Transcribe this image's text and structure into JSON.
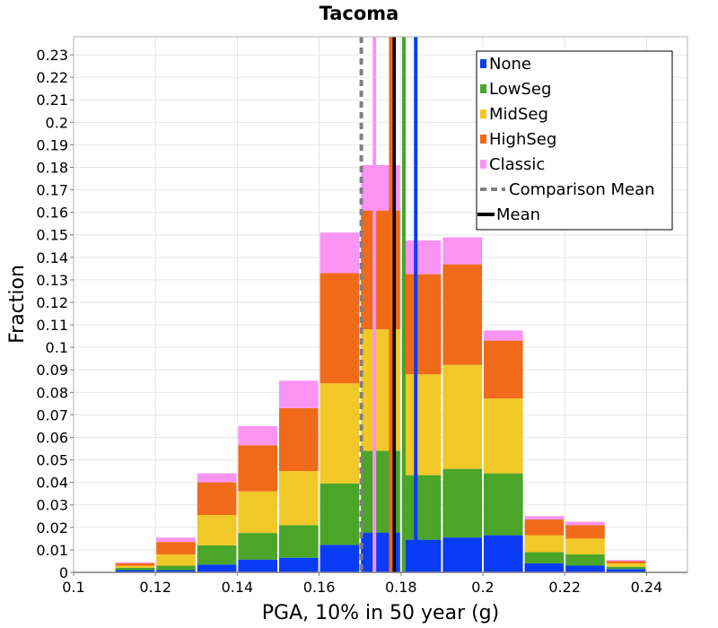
{
  "chart_data": {
    "type": "bar",
    "stacked": true,
    "title": "Tacoma",
    "xlabel": "PGA, 10% in 50 year (g)",
    "ylabel": "Fraction",
    "xlim": [
      0.1,
      0.25
    ],
    "ylim": [
      0,
      0.238
    ],
    "x_ticks": [
      "0.1",
      "0.12",
      "0.14",
      "0.16",
      "0.18",
      "0.2",
      "0.22",
      "0.24"
    ],
    "y_ticks": [
      "0",
      "0.01",
      "0.02",
      "0.03",
      "0.04",
      "0.05",
      "0.06",
      "0.07",
      "0.08",
      "0.09",
      "0.1",
      "0.11",
      "0.12",
      "0.13",
      "0.14",
      "0.15",
      "0.16",
      "0.17",
      "0.18",
      "0.19",
      "0.2",
      "0.21",
      "0.22",
      "0.23"
    ],
    "bin_width": 0.01,
    "bin_centers": [
      0.105,
      0.115,
      0.125,
      0.135,
      0.145,
      0.155,
      0.165,
      0.175,
      0.185,
      0.195,
      0.205,
      0.215,
      0.225,
      0.235,
      0.245
    ],
    "series": [
      {
        "name": "None",
        "color": "#0a3cf5",
        "values": [
          0,
          0.001,
          0.001,
          0.0035,
          0.0057,
          0.0065,
          0.0122,
          0.0177,
          0.0145,
          0.0155,
          0.0165,
          0.004,
          0.003,
          0.0015,
          0
        ]
      },
      {
        "name": "LowSeg",
        "color": "#4aa528",
        "values": [
          0,
          0.001,
          0.002,
          0.0085,
          0.0118,
          0.0145,
          0.0273,
          0.0363,
          0.0287,
          0.0305,
          0.0275,
          0.005,
          0.005,
          0.001,
          0
        ]
      },
      {
        "name": "MidSeg",
        "color": "#f2c828",
        "values": [
          0,
          0.001,
          0.005,
          0.0135,
          0.0185,
          0.024,
          0.0445,
          0.054,
          0.0448,
          0.0462,
          0.0333,
          0.0075,
          0.007,
          0.0015,
          0
        ]
      },
      {
        "name": "HighSeg",
        "color": "#f06a19",
        "values": [
          0,
          0.001,
          0.0055,
          0.0145,
          0.0205,
          0.028,
          0.049,
          0.0528,
          0.0445,
          0.0447,
          0.0257,
          0.007,
          0.006,
          0.001,
          0
        ]
      },
      {
        "name": "Classic",
        "color": "#f994f3",
        "values": [
          0,
          0.0005,
          0.002,
          0.004,
          0.0085,
          0.0122,
          0.018,
          0.0202,
          0.015,
          0.012,
          0.0045,
          0.0015,
          0.0015,
          0.0005,
          0
        ]
      }
    ],
    "vertical_lines": [
      {
        "name": "Comparison Mean",
        "x": 0.1703,
        "color": "#808080",
        "style": "dashed",
        "legend": true
      },
      {
        "name": "Mean",
        "x": 0.1783,
        "color": "#000000",
        "style": "solid",
        "legend": true
      },
      {
        "name": "None mean",
        "x": 0.1836,
        "color": "#0a3cf5",
        "style": "solid",
        "legend": false
      },
      {
        "name": "LowSeg mean",
        "x": 0.1807,
        "color": "#4aa528",
        "style": "solid",
        "legend": false
      },
      {
        "name": "HighSeg mean",
        "x": 0.1775,
        "color": "#f06a19",
        "style": "solid",
        "legend": false
      },
      {
        "name": "Classic mean",
        "x": 0.1735,
        "color": "#f994f3",
        "style": "solid",
        "legend": false
      }
    ],
    "legend": [
      {
        "label": "None",
        "color": "#0a3cf5",
        "kind": "box"
      },
      {
        "label": "LowSeg",
        "color": "#4aa528",
        "kind": "box"
      },
      {
        "label": "MidSeg",
        "color": "#f2c828",
        "kind": "box"
      },
      {
        "label": "HighSeg",
        "color": "#f06a19",
        "kind": "box"
      },
      {
        "label": "Classic",
        "color": "#f994f3",
        "kind": "box"
      },
      {
        "label": "Comparison Mean",
        "color": "#808080",
        "kind": "dashed"
      },
      {
        "label": "Mean",
        "color": "#000000",
        "kind": "line"
      }
    ],
    "legend_position": "top-right",
    "grid": true
  }
}
